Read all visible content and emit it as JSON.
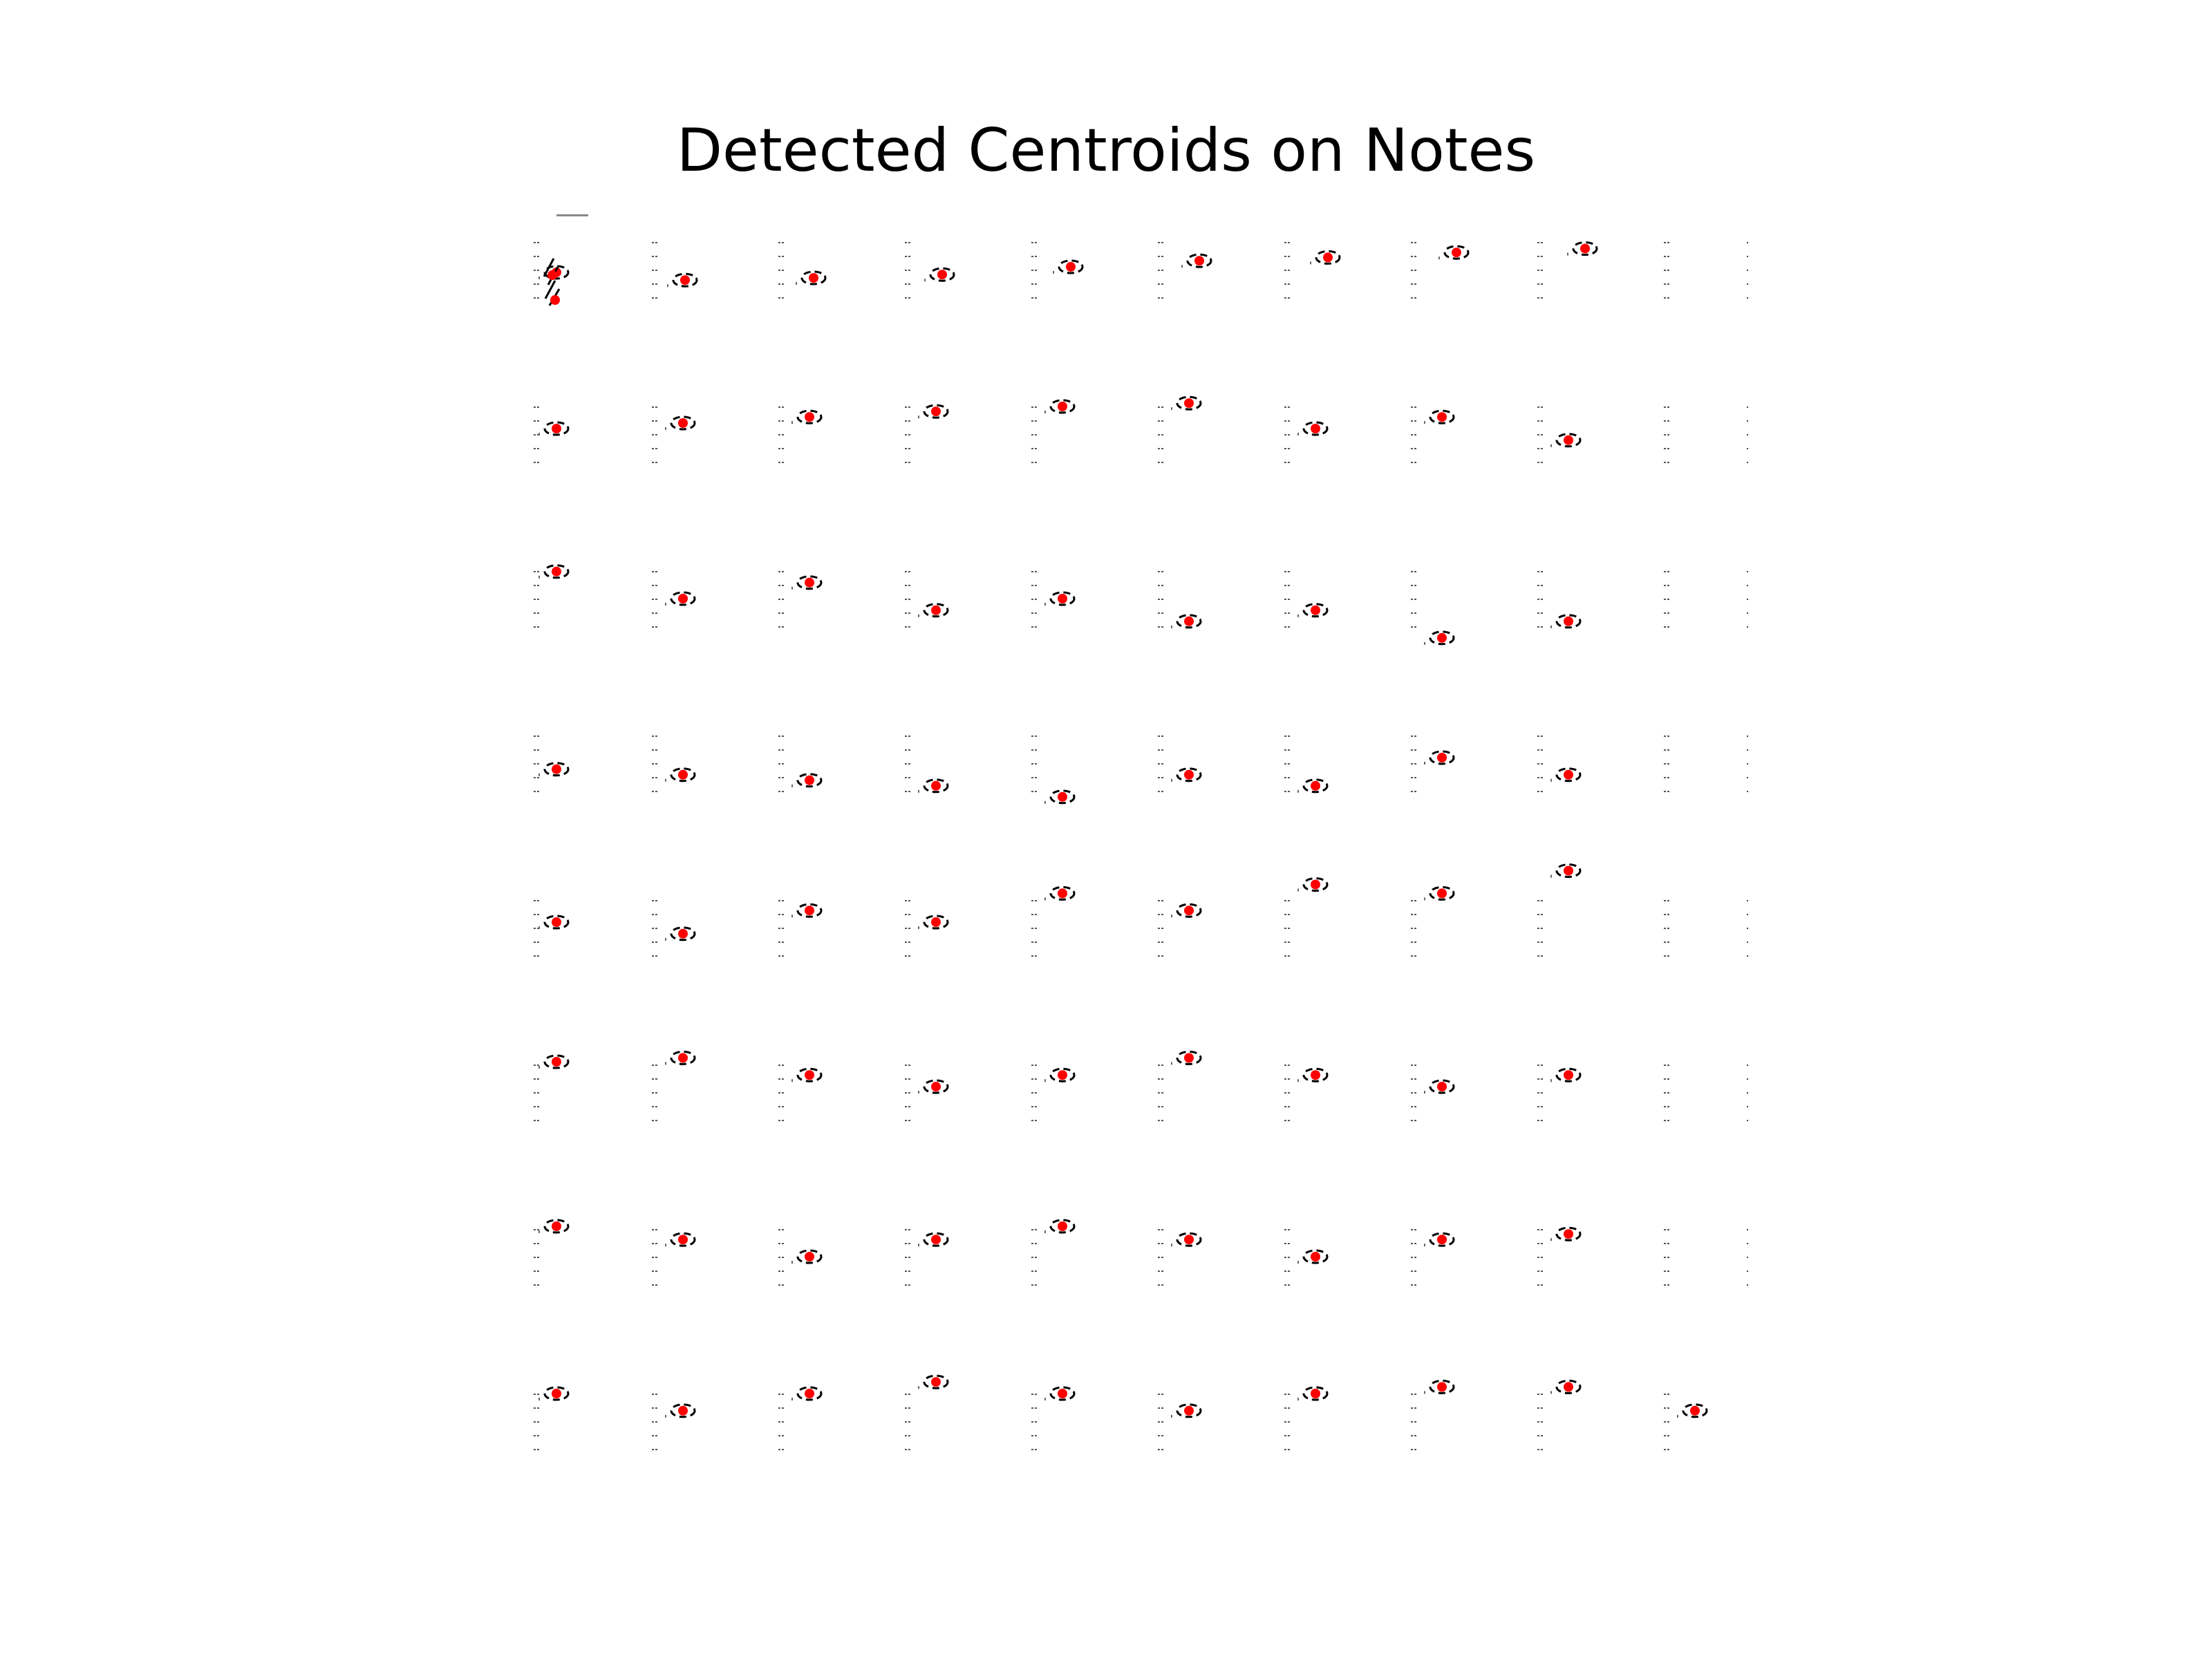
{
  "chart_data": {
    "type": "scatter",
    "title": "Detected Centroids on Notes",
    "xlabel": "",
    "ylabel": "",
    "axes_visible": false,
    "grid": false,
    "legend": "none",
    "marker_color": "#ff0000",
    "ink_color": "#000000",
    "rows": 8,
    "cols": 10,
    "note_offsets": [
      [
        0.55,
        0.69,
        0.65,
        0.59,
        0.45,
        0.34,
        0.28,
        0.19,
        0.12,
        null
      ],
      [
        0.4,
        0.3,
        0.19,
        0.09,
        0.0,
        -0.06,
        0.4,
        0.19,
        0.61,
        null
      ],
      [
        0.01,
        0.5,
        0.21,
        0.71,
        0.5,
        0.91,
        0.71,
        1.21,
        0.91,
        null
      ],
      [
        0.61,
        0.71,
        0.81,
        0.91,
        1.11,
        0.71,
        0.91,
        0.4,
        0.71,
        null
      ],
      [
        0.4,
        0.61,
        0.19,
        0.4,
        -0.12,
        0.19,
        -0.28,
        -0.12,
        -0.53,
        null
      ],
      [
        -0.05,
        -0.12,
        0.19,
        0.4,
        0.19,
        -0.12,
        0.19,
        0.4,
        0.19,
        null
      ],
      [
        -0.05,
        0.19,
        0.5,
        0.19,
        -0.05,
        0.19,
        0.5,
        0.19,
        0.09,
        null
      ],
      [
        0.0,
        0.31,
        0.0,
        -0.21,
        0.0,
        0.31,
        0.0,
        -0.12,
        -0.12,
        0.31
      ]
    ]
  }
}
